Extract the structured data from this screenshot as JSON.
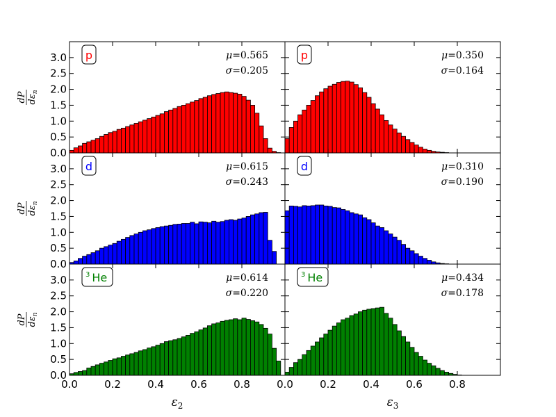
{
  "chart_data": {
    "type": "bar",
    "layout": {
      "rows": 3,
      "cols": 2
    },
    "x_ticks": [
      "0.0",
      "0.2",
      "0.4",
      "0.6",
      "0.8"
    ],
    "x_tick_values": [
      0.0,
      0.2,
      0.4,
      0.6,
      0.8
    ],
    "y_ticks": [
      "0.0",
      "0.5",
      "1.0",
      "1.5",
      "2.0",
      "2.5",
      "3.0"
    ],
    "y_tick_values": [
      0.0,
      0.5,
      1.0,
      1.5,
      2.0,
      2.5,
      3.0
    ],
    "xlim": [
      0,
      1.0
    ],
    "ylim": [
      0,
      3.5
    ],
    "bin_width": 0.02,
    "xlabels": [
      {
        "base": "ε",
        "sub": "2"
      },
      {
        "base": "ε",
        "sub": "3"
      }
    ],
    "ylabel": {
      "num": "dP",
      "den_base": "dε",
      "den_sub": "n"
    },
    "rows": [
      {
        "particle": "p",
        "color": "#ff0000",
        "panels": [
          {
            "mu": "0.565",
            "sigma": "0.205",
            "values": [
              0.08,
              0.16,
              0.22,
              0.3,
              0.35,
              0.4,
              0.45,
              0.52,
              0.58,
              0.64,
              0.68,
              0.74,
              0.78,
              0.83,
              0.88,
              0.93,
              0.98,
              1.03,
              1.08,
              1.13,
              1.18,
              1.23,
              1.3,
              1.35,
              1.4,
              1.46,
              1.5,
              1.55,
              1.6,
              1.65,
              1.71,
              1.75,
              1.8,
              1.84,
              1.87,
              1.9,
              1.92,
              1.9,
              1.88,
              1.85,
              1.78,
              1.66,
              1.5,
              1.25,
              0.85,
              0.45,
              0.15,
              0.05,
              0.01,
              0.0
            ]
          },
          {
            "mu": "0.350",
            "sigma": "0.164",
            "values": [
              0.45,
              0.8,
              1.0,
              1.2,
              1.35,
              1.5,
              1.65,
              1.8,
              1.92,
              2.02,
              2.1,
              2.16,
              2.22,
              2.25,
              2.26,
              2.23,
              2.15,
              2.05,
              1.9,
              1.75,
              1.55,
              1.38,
              1.2,
              1.02,
              0.88,
              0.75,
              0.63,
              0.52,
              0.42,
              0.33,
              0.25,
              0.18,
              0.12,
              0.08,
              0.05,
              0.03,
              0.02,
              0.01,
              0.0,
              0.0,
              0.0,
              0.0,
              0.0,
              0.0,
              0.0,
              0.0,
              0.0,
              0.0,
              0.0,
              0.0
            ]
          }
        ]
      },
      {
        "particle": "d",
        "color": "#0000ff",
        "panels": [
          {
            "mu": "0.615",
            "sigma": "0.243",
            "values": [
              0.05,
              0.1,
              0.18,
              0.25,
              0.3,
              0.36,
              0.42,
              0.5,
              0.55,
              0.6,
              0.65,
              0.72,
              0.78,
              0.84,
              0.9,
              0.95,
              1.0,
              1.05,
              1.08,
              1.12,
              1.15,
              1.18,
              1.2,
              1.22,
              1.25,
              1.26,
              1.28,
              1.28,
              1.32,
              1.27,
              1.33,
              1.32,
              1.3,
              1.35,
              1.32,
              1.34,
              1.38,
              1.4,
              1.38,
              1.42,
              1.45,
              1.5,
              1.55,
              1.58,
              1.62,
              1.63,
              0.75,
              0.4,
              0.0,
              0.0
            ]
          },
          {
            "mu": "0.310",
            "sigma": "0.190",
            "values": [
              1.68,
              1.83,
              1.82,
              1.8,
              1.84,
              1.83,
              1.84,
              1.86,
              1.86,
              1.83,
              1.82,
              1.78,
              1.77,
              1.72,
              1.68,
              1.62,
              1.58,
              1.55,
              1.46,
              1.4,
              1.3,
              1.2,
              1.15,
              1.05,
              0.95,
              0.85,
              0.75,
              0.62,
              0.5,
              0.42,
              0.33,
              0.25,
              0.18,
              0.12,
              0.07,
              0.04,
              0.02,
              0.01,
              0.0,
              0.0,
              0.0,
              0.0,
              0.0,
              0.0,
              0.0,
              0.0,
              0.0,
              0.0,
              0.0,
              0.0
            ]
          }
        ]
      },
      {
        "particle": "³He",
        "badge_sup": "3",
        "badge_main": "He",
        "color": "#008000",
        "panels": [
          {
            "mu": "0.614",
            "sigma": "0.220",
            "values": [
              0.05,
              0.09,
              0.12,
              0.15,
              0.23,
              0.28,
              0.33,
              0.38,
              0.42,
              0.47,
              0.52,
              0.55,
              0.6,
              0.64,
              0.68,
              0.72,
              0.77,
              0.81,
              0.86,
              0.9,
              0.95,
              1.0,
              1.06,
              1.09,
              1.12,
              1.16,
              1.21,
              1.26,
              1.32,
              1.37,
              1.43,
              1.49,
              1.56,
              1.62,
              1.65,
              1.7,
              1.73,
              1.75,
              1.78,
              1.75,
              1.8,
              1.76,
              1.72,
              1.68,
              1.6,
              1.48,
              1.3,
              0.85,
              0.45,
              0.0
            ]
          },
          {
            "mu": "0.434",
            "sigma": "0.178",
            "values": [
              0.1,
              0.25,
              0.4,
              0.5,
              0.65,
              0.78,
              0.92,
              1.05,
              1.18,
              1.3,
              1.42,
              1.55,
              1.65,
              1.75,
              1.8,
              1.88,
              1.93,
              2.0,
              2.05,
              2.08,
              2.1,
              2.12,
              2.14,
              1.95,
              1.8,
              1.6,
              1.4,
              1.22,
              1.05,
              0.88,
              0.72,
              0.6,
              0.48,
              0.38,
              0.3,
              0.22,
              0.15,
              0.1,
              0.06,
              0.03,
              0.01,
              0.0,
              0.0,
              0.0,
              0.0,
              0.0,
              0.0,
              0.0,
              0.0,
              0.0
            ]
          }
        ]
      }
    ]
  }
}
